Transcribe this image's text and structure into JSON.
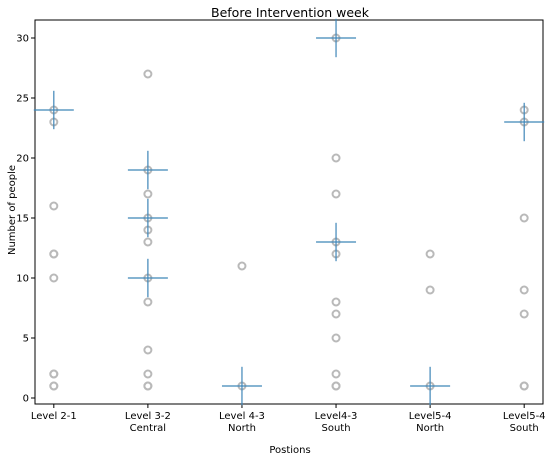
{
  "chart_data": {
    "type": "scatter",
    "title": "Before Intervention week",
    "xlabel": "Postions",
    "ylabel": "Number of people",
    "categories": [
      "Level 2-1",
      "Level 3-2\nCentral",
      "Level 4-3\nNorth",
      "Level4-3\nSouth",
      "Level5-4\nNorth",
      "Level5-4\nSouth"
    ],
    "ylim": [
      -0.5,
      31.5
    ],
    "yticks": [
      0,
      5,
      10,
      15,
      20,
      25,
      30
    ],
    "grid": false,
    "colors": {
      "points": "#b9b9b9",
      "markers": "#3f86b8",
      "axis": "#000000"
    },
    "series": [
      {
        "values": [
          [
            24,
            23,
            16,
            12,
            12,
            10,
            2,
            2,
            1,
            1
          ],
          [
            27,
            19,
            17,
            15,
            14,
            13,
            10,
            8,
            4,
            2,
            1,
            1
          ],
          [
            11,
            1
          ],
          [
            30,
            20,
            17,
            13,
            12,
            8,
            7,
            5,
            2,
            1,
            1
          ],
          [
            12,
            9,
            1
          ],
          [
            24,
            23,
            15,
            9,
            7,
            1,
            1
          ]
        ]
      },
      {
        "values": [
          [
            24
          ],
          [
            19,
            15,
            10
          ],
          [
            1
          ],
          [
            30,
            13
          ],
          [
            1
          ],
          [
            23
          ]
        ]
      }
    ]
  }
}
